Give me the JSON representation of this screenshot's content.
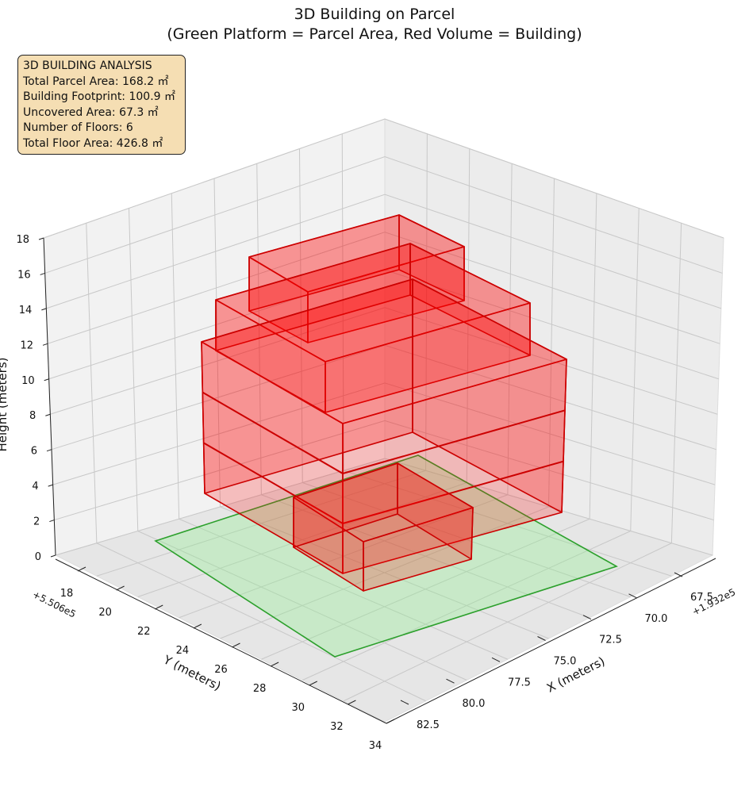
{
  "chart_data": {
    "type": "3d-box",
    "title_line1": "3D Building on Parcel",
    "title_line2": "(Green Platform = Parcel Area, Red Volume = Building)",
    "info_box": {
      "heading": "3D BUILDING ANALYSIS",
      "lines": [
        "Total Parcel Area: 168.2 ㎡",
        "Building Footprint: 100.9 ㎡",
        "Uncovered Area: 67.3 ㎡",
        "Number of Floors: 6",
        "Total Floor Area: 426.8 ㎡"
      ]
    },
    "axes": {
      "x": {
        "label": "X (meters)",
        "offset": "+1.932e5",
        "ticks": [
          "67.5",
          "70.0",
          "72.5",
          "75.0",
          "77.5",
          "80.0",
          "82.5"
        ]
      },
      "y": {
        "label": "Y (meters)",
        "offset": "+5.506e5",
        "ticks": [
          "18",
          "20",
          "22",
          "24",
          "26",
          "28",
          "30",
          "32",
          "34"
        ]
      },
      "z": {
        "label": "Height (meters)",
        "ticks": [
          "0",
          "2",
          "4",
          "6",
          "8",
          "10",
          "12",
          "14",
          "16",
          "18"
        ]
      }
    },
    "parcel_color": "#90ee90",
    "parcel_edge_color": "#2ca02c",
    "building_color": "#ff0000",
    "building_edge_color": "#cc0000"
  }
}
